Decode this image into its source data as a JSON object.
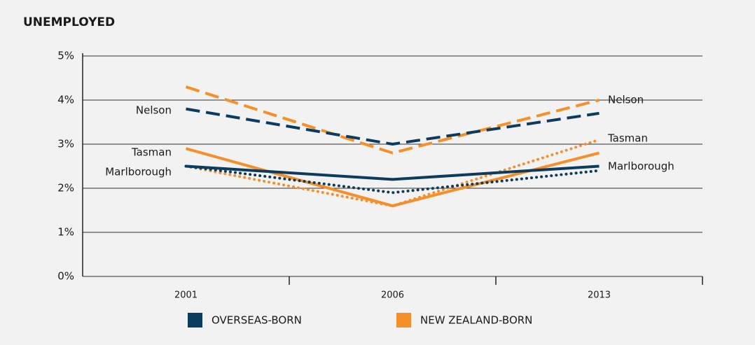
{
  "chart_data": {
    "type": "line",
    "title": "UNEMPLOYED",
    "categories": [
      "2001",
      "2006",
      "2013"
    ],
    "ylim": [
      0,
      5
    ],
    "yticks": [
      {
        "value": 0,
        "label": "0%"
      },
      {
        "value": 1,
        "label": "1%"
      },
      {
        "value": 2,
        "label": "2%"
      },
      {
        "value": 3,
        "label": "3%"
      },
      {
        "value": 4,
        "label": "4%"
      },
      {
        "value": 5,
        "label": "5%"
      }
    ],
    "grid": true,
    "legend": [
      {
        "name": "OVERSEAS-BORN",
        "color": "#0c3b5e"
      },
      {
        "name": "NEW ZEALAND-BORN",
        "color": "#f58f2a"
      }
    ],
    "regions": [
      {
        "name": "Nelson",
        "style": "dashed"
      },
      {
        "name": "Tasman",
        "style": "solid"
      },
      {
        "name": "Marlborough",
        "style": "dotted"
      }
    ],
    "series": [
      {
        "group": 1,
        "region": 0,
        "values": [
          4.3,
          2.8,
          4.0
        ]
      },
      {
        "group": 0,
        "region": 0,
        "values": [
          3.8,
          3.0,
          3.7
        ]
      },
      {
        "group": 1,
        "region": 1,
        "values": [
          2.9,
          1.6,
          2.8
        ]
      },
      {
        "group": 1,
        "region": 2,
        "values": [
          2.5,
          1.6,
          3.1
        ]
      },
      {
        "group": 0,
        "region": 2,
        "values": [
          2.5,
          1.9,
          2.4
        ]
      },
      {
        "group": 0,
        "region": 1,
        "values": [
          2.5,
          2.2,
          2.5
        ]
      }
    ]
  }
}
